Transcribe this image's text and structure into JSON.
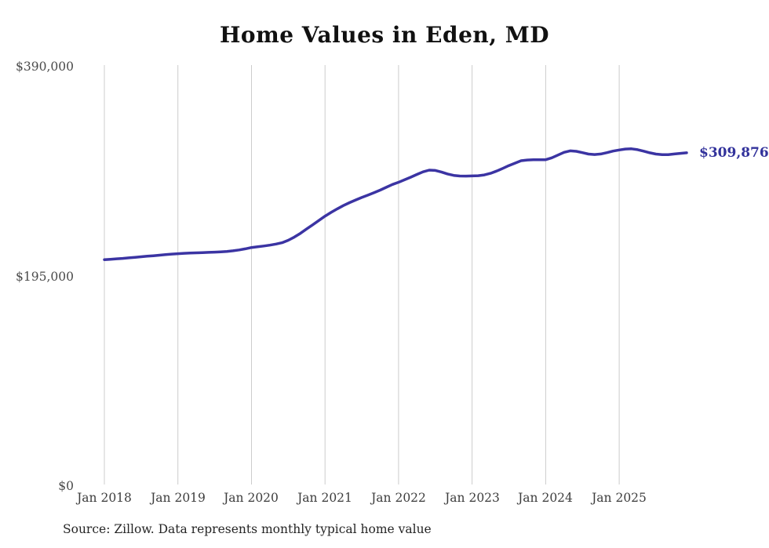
{
  "chart": {
    "title": "Home Values in Eden, MD",
    "end_label": "$309,876",
    "source": "Source: Zillow. Data represents monthly typical home value"
  },
  "colors": {
    "line": "#3b34a3",
    "end_label_text": "#32329b",
    "grid": "#cccccc",
    "axis_text": "#4a4a4a",
    "title_text": "#111111",
    "source_text": "#252525",
    "background": "#ffffff"
  },
  "chart_data": {
    "type": "line",
    "title": "Home Values in Eden, MD",
    "xlabel": "",
    "ylabel": "",
    "ylim": [
      0,
      390000
    ],
    "grid": "vertical-only",
    "legend": "none",
    "y_ticks": [
      {
        "label": "$390,000",
        "value": 390000
      },
      {
        "label": "$195,000",
        "value": 195000
      },
      {
        "label": "$0",
        "value": 0
      }
    ],
    "x_ticks": [
      {
        "label": "Jan 2018",
        "month_index": 0
      },
      {
        "label": "Jan 2019",
        "month_index": 12
      },
      {
        "label": "Jan 2020",
        "month_index": 24
      },
      {
        "label": "Jan 2021",
        "month_index": 36
      },
      {
        "label": "Jan 2022",
        "month_index": 48
      },
      {
        "label": "Jan 2023",
        "month_index": 60
      },
      {
        "label": "Jan 2024",
        "month_index": 72
      },
      {
        "label": "Jan 2025",
        "month_index": 84
      }
    ],
    "x": [
      "2018-01",
      "2018-02",
      "2018-03",
      "2018-04",
      "2018-05",
      "2018-06",
      "2018-07",
      "2018-08",
      "2018-09",
      "2018-10",
      "2018-11",
      "2018-12",
      "2019-01",
      "2019-02",
      "2019-03",
      "2019-04",
      "2019-05",
      "2019-06",
      "2019-07",
      "2019-08",
      "2019-09",
      "2019-10",
      "2019-11",
      "2019-12",
      "2020-01",
      "2020-02",
      "2020-03",
      "2020-04",
      "2020-05",
      "2020-06",
      "2020-07",
      "2020-08",
      "2020-09",
      "2020-10",
      "2020-11",
      "2020-12",
      "2021-01",
      "2021-02",
      "2021-03",
      "2021-04",
      "2021-05",
      "2021-06",
      "2021-07",
      "2021-08",
      "2021-09",
      "2021-10",
      "2021-11",
      "2021-12",
      "2022-01",
      "2022-02",
      "2022-03",
      "2022-04",
      "2022-05",
      "2022-06",
      "2022-07",
      "2022-08",
      "2022-09",
      "2022-10",
      "2022-11",
      "2022-12",
      "2023-01",
      "2023-02",
      "2023-03",
      "2023-04",
      "2023-05",
      "2023-06",
      "2023-07",
      "2023-08",
      "2023-09",
      "2023-10",
      "2023-11",
      "2023-12",
      "2024-01",
      "2024-02",
      "2024-03",
      "2024-04",
      "2024-05",
      "2024-06",
      "2024-07",
      "2024-08",
      "2024-09",
      "2024-10",
      "2024-11",
      "2024-12",
      "2025-01",
      "2025-02",
      "2025-03",
      "2025-04",
      "2025-05",
      "2025-06",
      "2025-07",
      "2025-08",
      "2025-09",
      "2025-10",
      "2025-11",
      "2025-12"
    ],
    "series": [
      {
        "name": "Typical home value",
        "last_value": 309876,
        "last_value_label": "$309,876",
        "values": [
          210500,
          210900,
          211300,
          211700,
          212200,
          212700,
          213200,
          213700,
          214200,
          214700,
          215200,
          215700,
          216100,
          216400,
          216700,
          216900,
          217100,
          217300,
          217500,
          217800,
          218200,
          218800,
          219600,
          220600,
          221800,
          222500,
          223200,
          224000,
          225000,
          226300,
          228500,
          231500,
          235000,
          239000,
          243000,
          247000,
          251000,
          254500,
          257800,
          260800,
          263500,
          266000,
          268300,
          270500,
          272800,
          275200,
          277800,
          280400,
          282500,
          284800,
          287200,
          289800,
          292200,
          293800,
          293500,
          292000,
          290200,
          288900,
          288300,
          288200,
          288400,
          288600,
          289300,
          290800,
          292900,
          295400,
          298000,
          300300,
          302500,
          303200,
          303400,
          303400,
          303500,
          305200,
          307800,
          310300,
          311700,
          311300,
          310000,
          308700,
          308300,
          308800,
          310000,
          311500,
          312500,
          313400,
          313600,
          312800,
          311400,
          309900,
          308700,
          308100,
          308200,
          308800,
          309400,
          309876
        ]
      }
    ]
  }
}
